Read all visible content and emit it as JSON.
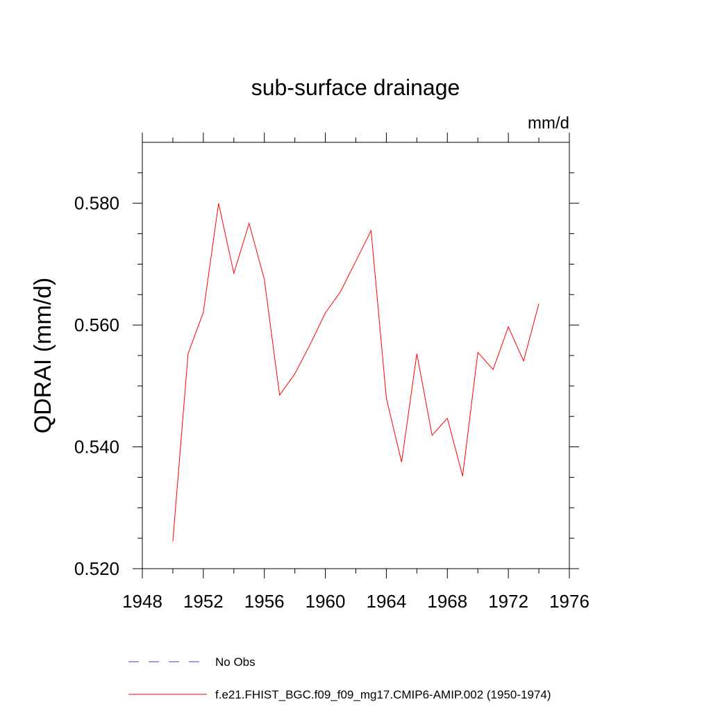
{
  "chart_data": {
    "type": "line",
    "title": "sub-surface drainage",
    "units": "mm/d",
    "ylabel": "QDRAI  (mm/d)",
    "xlabel": "",
    "xlim": [
      1948,
      1976
    ],
    "ylim": [
      0.52,
      0.59
    ],
    "x_ticks": [
      1948,
      1952,
      1956,
      1960,
      1964,
      1968,
      1972,
      1976
    ],
    "x_tick_labels": [
      "1948",
      "1952",
      "1956",
      "1960",
      "1964",
      "1968",
      "1972",
      "1976"
    ],
    "y_ticks": [
      0.52,
      0.54,
      0.56,
      0.58
    ],
    "y_tick_labels": [
      "0.520",
      "0.540",
      "0.560",
      "0.580"
    ],
    "grid": false,
    "legend_position": "bottom",
    "series": [
      {
        "name": "No Obs",
        "color": "#3b3bd6",
        "style": "dashed",
        "x": [],
        "y": []
      },
      {
        "name": "f.e21.FHIST_BGC.f09_f09_mg17.CMIP6-AMIP.002 (1950-1974)",
        "color": "#ff0000",
        "style": "solid",
        "x": [
          1950,
          1951,
          1952,
          1953,
          1954,
          1955,
          1956,
          1957,
          1958,
          1959,
          1960,
          1961,
          1962,
          1963,
          1964,
          1965,
          1966,
          1967,
          1968,
          1969,
          1970,
          1971,
          1972,
          1973,
          1974
        ],
        "y": [
          0.5245,
          0.5553,
          0.5621,
          0.58,
          0.5685,
          0.5767,
          0.5675,
          0.5485,
          0.552,
          0.5568,
          0.562,
          0.5655,
          0.5705,
          0.5755,
          0.548,
          0.5375,
          0.5553,
          0.5419,
          0.5447,
          0.5352,
          0.5555,
          0.5527,
          0.5597,
          0.5541,
          0.5635
        ]
      }
    ]
  }
}
